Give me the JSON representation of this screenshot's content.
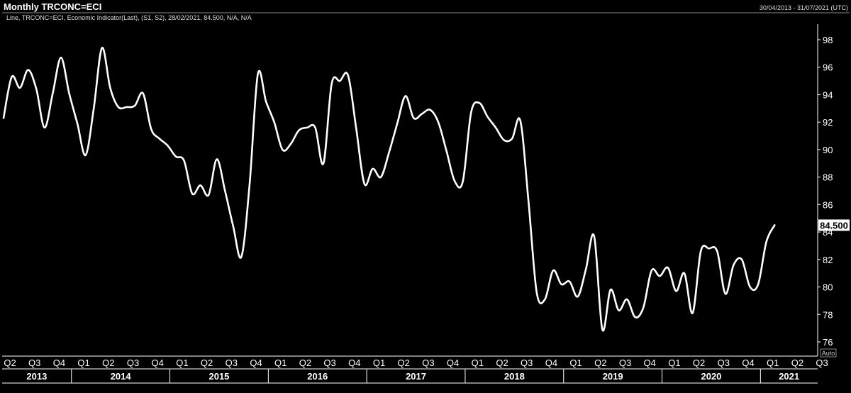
{
  "header": {
    "title": "Monthly TRCONC=ECI",
    "date_range": "30/04/2013 - 31/07/2021 (UTC)",
    "legend": "Line, TRCONC=ECI, Economic Indicator(Last), (S1, S2), 28/02/2021, 84.500, N/A, N/A",
    "last_value_label": "84.500",
    "auto_label": "Auto"
  },
  "colors": {
    "background": "#000000",
    "line": "#ffffff",
    "axis": "#ffffff"
  },
  "chart_data": {
    "type": "line",
    "title": "Monthly TRCONC=ECI",
    "xlabel": "",
    "ylabel": "",
    "ylim": [
      75,
      100
    ],
    "y_ticks": [
      76,
      78,
      80,
      82,
      84,
      86,
      88,
      90,
      92,
      94,
      96,
      98
    ],
    "grid": false,
    "legend_position": "top-left",
    "quarter_labels": [
      "Q2",
      "Q3",
      "Q4",
      "Q1",
      "Q2",
      "Q3",
      "Q4",
      "Q1",
      "Q2",
      "Q3",
      "Q4",
      "Q1",
      "Q2",
      "Q3",
      "Q4",
      "Q1",
      "Q2",
      "Q3",
      "Q4",
      "Q1",
      "Q2",
      "Q3",
      "Q4",
      "Q1",
      "Q2",
      "Q3",
      "Q4",
      "Q1",
      "Q2",
      "Q3",
      "Q4",
      "Q1",
      "Q2",
      "Q3"
    ],
    "year_labels": [
      "2013",
      "2014",
      "2015",
      "2016",
      "2017",
      "2018",
      "2019",
      "2020",
      "2021"
    ],
    "series": [
      {
        "name": "TRCONC=ECI",
        "x": [
          "2013-04",
          "2013-05",
          "2013-06",
          "2013-07",
          "2013-08",
          "2013-09",
          "2013-10",
          "2013-11",
          "2013-12",
          "2014-01",
          "2014-02",
          "2014-03",
          "2014-04",
          "2014-05",
          "2014-06",
          "2014-07",
          "2014-08",
          "2014-09",
          "2014-10",
          "2014-11",
          "2014-12",
          "2015-01",
          "2015-02",
          "2015-03",
          "2015-04",
          "2015-05",
          "2015-06",
          "2015-07",
          "2015-08",
          "2015-09",
          "2015-10",
          "2015-11",
          "2015-12",
          "2016-01",
          "2016-02",
          "2016-03",
          "2016-04",
          "2016-05",
          "2016-06",
          "2016-07",
          "2016-08",
          "2016-09",
          "2016-10",
          "2016-11",
          "2016-12",
          "2017-01",
          "2017-02",
          "2017-03",
          "2017-04",
          "2017-05",
          "2017-06",
          "2017-07",
          "2017-08",
          "2017-09",
          "2017-10",
          "2017-11",
          "2017-12",
          "2018-01",
          "2018-02",
          "2018-03",
          "2018-04",
          "2018-05",
          "2018-06",
          "2018-07",
          "2018-08",
          "2018-09",
          "2018-10",
          "2018-11",
          "2018-12",
          "2019-01",
          "2019-02",
          "2019-03",
          "2019-04",
          "2019-05",
          "2019-06",
          "2019-07",
          "2019-08",
          "2019-09",
          "2019-10",
          "2019-11",
          "2019-12",
          "2020-01",
          "2020-02",
          "2020-03",
          "2020-04",
          "2020-05",
          "2020-06",
          "2020-07",
          "2020-08",
          "2020-09",
          "2020-10",
          "2020-11",
          "2020-12",
          "2021-01",
          "2021-02"
        ],
        "values": [
          92.3,
          95.3,
          94.5,
          95.8,
          94.4,
          91.6,
          94.1,
          96.7,
          94.1,
          91.9,
          89.6,
          93.0,
          97.4,
          94.5,
          93.1,
          93.1,
          93.2,
          94.1,
          91.5,
          90.8,
          90.3,
          89.5,
          89.2,
          86.8,
          87.4,
          86.7,
          89.3,
          87.0,
          84.4,
          82.2,
          87.5,
          95.5,
          93.5,
          92.0,
          90.0,
          90.4,
          91.4,
          91.6,
          91.6,
          89.0,
          94.8,
          95.0,
          95.4,
          91.5,
          87.5,
          88.6,
          88.0,
          89.8,
          91.9,
          93.9,
          92.3,
          92.6,
          92.9,
          92.0,
          89.9,
          87.7,
          87.7,
          92.7,
          93.4,
          92.4,
          91.6,
          90.7,
          90.8,
          92.1,
          86.2,
          79.6,
          79.1,
          81.2,
          80.2,
          80.4,
          79.3,
          81.3,
          83.7,
          76.9,
          79.8,
          78.3,
          79.1,
          77.8,
          78.5,
          81.2,
          80.8,
          81.4,
          79.7,
          81.0,
          78.1,
          82.6,
          82.8,
          82.6,
          79.5,
          81.6,
          82.0,
          80.0,
          80.2,
          83.3,
          84.5
        ]
      }
    ]
  }
}
